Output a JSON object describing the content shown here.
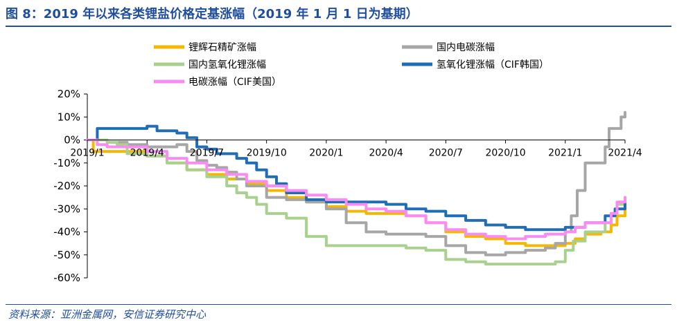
{
  "header": {
    "title": "图 8：2019 年以来各类锂盐价格定基涨幅（2019 年 1 月 1 日为基期）"
  },
  "footer": {
    "source": "资料来源：亚洲金属网，安信证券研究中心"
  },
  "chart_data": {
    "type": "line",
    "title": "2019 年以来各类锂盐价格定基涨幅（2019 年 1 月 1 日为基期）",
    "xlabel": "",
    "ylabel": "",
    "x_ticks": [
      "2019/1",
      "2019/4",
      "2019/7",
      "2019/10",
      "2020/1",
      "2020/4",
      "2020/7",
      "2020/10",
      "2021/1",
      "2021/4"
    ],
    "y_ticks": [
      "20%",
      "10%",
      "0%",
      "-10%",
      "-20%",
      "-30%",
      "-40%",
      "-50%",
      "-60%"
    ],
    "ylim": [
      -60,
      20
    ],
    "xlim_months": [
      0,
      27
    ],
    "x_unit": "months since 2019/1",
    "legend_position": "top",
    "series": [
      {
        "name": "锂辉石精矿涨幅",
        "color": "#f5b800",
        "points": [
          [
            0,
            0
          ],
          [
            0.3,
            -5
          ],
          [
            1,
            -5
          ],
          [
            2,
            -5
          ],
          [
            3,
            -7
          ],
          [
            4,
            -10
          ],
          [
            5,
            -13
          ],
          [
            6,
            -15
          ],
          [
            7,
            -17
          ],
          [
            8,
            -19
          ],
          [
            9,
            -22
          ],
          [
            10,
            -25
          ],
          [
            11,
            -27
          ],
          [
            12,
            -29
          ],
          [
            13,
            -31
          ],
          [
            14,
            -32
          ],
          [
            15,
            -32
          ],
          [
            16,
            -33
          ],
          [
            17,
            -36
          ],
          [
            18,
            -40
          ],
          [
            19,
            -42
          ],
          [
            20,
            -43
          ],
          [
            21,
            -45
          ],
          [
            22,
            -46
          ],
          [
            23,
            -46
          ],
          [
            24,
            -45
          ],
          [
            24.5,
            -43
          ],
          [
            25,
            -41
          ],
          [
            25.8,
            -40
          ],
          [
            26.3,
            -37
          ],
          [
            26.6,
            -33
          ],
          [
            27,
            -25
          ]
        ]
      },
      {
        "name": "国内电碳涨幅",
        "color": "#a6a6a6",
        "points": [
          [
            0,
            0
          ],
          [
            1,
            -1
          ],
          [
            2,
            -2
          ],
          [
            3,
            -3
          ],
          [
            4,
            -3
          ],
          [
            4.5,
            -2
          ],
          [
            5,
            -5
          ],
          [
            5.5,
            -9
          ],
          [
            6,
            -11
          ],
          [
            6.5,
            -12
          ],
          [
            7,
            -14
          ],
          [
            7.5,
            -17
          ],
          [
            8,
            -20
          ],
          [
            9,
            -25
          ],
          [
            10,
            -26
          ],
          [
            11,
            -27
          ],
          [
            12,
            -30
          ],
          [
            13,
            -36
          ],
          [
            14,
            -40
          ],
          [
            15,
            -41
          ],
          [
            16,
            -41
          ],
          [
            17,
            -42
          ],
          [
            18,
            -46
          ],
          [
            19,
            -49
          ],
          [
            20,
            -50
          ],
          [
            21,
            -49
          ],
          [
            22,
            -48
          ],
          [
            23,
            -47
          ],
          [
            23.5,
            -45
          ],
          [
            24,
            -40
          ],
          [
            24.3,
            -33
          ],
          [
            24.6,
            -22
          ],
          [
            25,
            -10
          ],
          [
            25.5,
            -10
          ],
          [
            25.8,
            -10
          ],
          [
            26,
            -3
          ],
          [
            26.2,
            5
          ],
          [
            26.6,
            5
          ],
          [
            26.8,
            10
          ],
          [
            27,
            12
          ]
        ]
      },
      {
        "name": "国内氢氧化锂涨幅",
        "color": "#a9d18e",
        "points": [
          [
            0,
            0
          ],
          [
            1,
            -1
          ],
          [
            1.5,
            -2
          ],
          [
            2,
            -6
          ],
          [
            3,
            -7
          ],
          [
            4,
            -10
          ],
          [
            5,
            -13
          ],
          [
            6,
            -16
          ],
          [
            7,
            -20
          ],
          [
            7.5,
            -23
          ],
          [
            8,
            -25
          ],
          [
            8.5,
            -28
          ],
          [
            9,
            -32
          ],
          [
            10,
            -34
          ],
          [
            11,
            -42
          ],
          [
            12,
            -46
          ],
          [
            13,
            -46
          ],
          [
            14,
            -46
          ],
          [
            15,
            -46
          ],
          [
            16,
            -47
          ],
          [
            17,
            -48
          ],
          [
            18,
            -52
          ],
          [
            19,
            -53
          ],
          [
            20,
            -54
          ],
          [
            21,
            -54
          ],
          [
            22,
            -54
          ],
          [
            23,
            -54
          ],
          [
            23.5,
            -53
          ],
          [
            24,
            -48
          ],
          [
            24.4,
            -44
          ],
          [
            25,
            -40
          ],
          [
            26,
            -36
          ],
          [
            26.3,
            -32
          ],
          [
            26.6,
            -28
          ],
          [
            27,
            -27
          ]
        ]
      },
      {
        "name": "氢氧化锂涨幅（CIF韩国）",
        "color": "#1f6db5",
        "points": [
          [
            0,
            0
          ],
          [
            0.5,
            5
          ],
          [
            1,
            5
          ],
          [
            2,
            5
          ],
          [
            3,
            6
          ],
          [
            3.5,
            4
          ],
          [
            4,
            4
          ],
          [
            4.5,
            3
          ],
          [
            5,
            1
          ],
          [
            5.5,
            -3
          ],
          [
            6,
            -4
          ],
          [
            6.5,
            -6
          ],
          [
            7,
            -6
          ],
          [
            7.5,
            -8
          ],
          [
            8,
            -10
          ],
          [
            8.5,
            -13
          ],
          [
            9,
            -16
          ],
          [
            9.5,
            -19
          ],
          [
            10,
            -23
          ],
          [
            11,
            -26
          ],
          [
            12,
            -27
          ],
          [
            13,
            -27
          ],
          [
            14,
            -27
          ],
          [
            15,
            -28
          ],
          [
            16,
            -30
          ],
          [
            17,
            -31
          ],
          [
            18,
            -33
          ],
          [
            19,
            -35
          ],
          [
            20,
            -37
          ],
          [
            21,
            -38
          ],
          [
            22,
            -39
          ],
          [
            23,
            -39
          ],
          [
            24,
            -38
          ],
          [
            25,
            -36
          ],
          [
            26,
            -33
          ],
          [
            26.5,
            -30
          ],
          [
            27,
            -27
          ]
        ]
      },
      {
        "name": "电碳涨幅（CIF美国）",
        "color": "#f98cf2",
        "points": [
          [
            0,
            0
          ],
          [
            0.5,
            -2
          ],
          [
            1,
            -3
          ],
          [
            2,
            -3
          ],
          [
            3,
            -5
          ],
          [
            4,
            -8
          ],
          [
            5,
            -10
          ],
          [
            6,
            -13
          ],
          [
            7,
            -15
          ],
          [
            8,
            -18
          ],
          [
            9,
            -20
          ],
          [
            10,
            -22
          ],
          [
            11,
            -24
          ],
          [
            12,
            -26
          ],
          [
            13,
            -28
          ],
          [
            14,
            -30
          ],
          [
            15,
            -31
          ],
          [
            16,
            -33
          ],
          [
            17,
            -36
          ],
          [
            18,
            -39
          ],
          [
            19,
            -41
          ],
          [
            20,
            -42
          ],
          [
            21,
            -43
          ],
          [
            22,
            -42
          ],
          [
            23,
            -41
          ],
          [
            24,
            -40
          ],
          [
            24.5,
            -38
          ],
          [
            25,
            -36
          ],
          [
            26,
            -36
          ],
          [
            26.3,
            -32
          ],
          [
            26.6,
            -27
          ],
          [
            27,
            -25
          ]
        ]
      }
    ]
  }
}
